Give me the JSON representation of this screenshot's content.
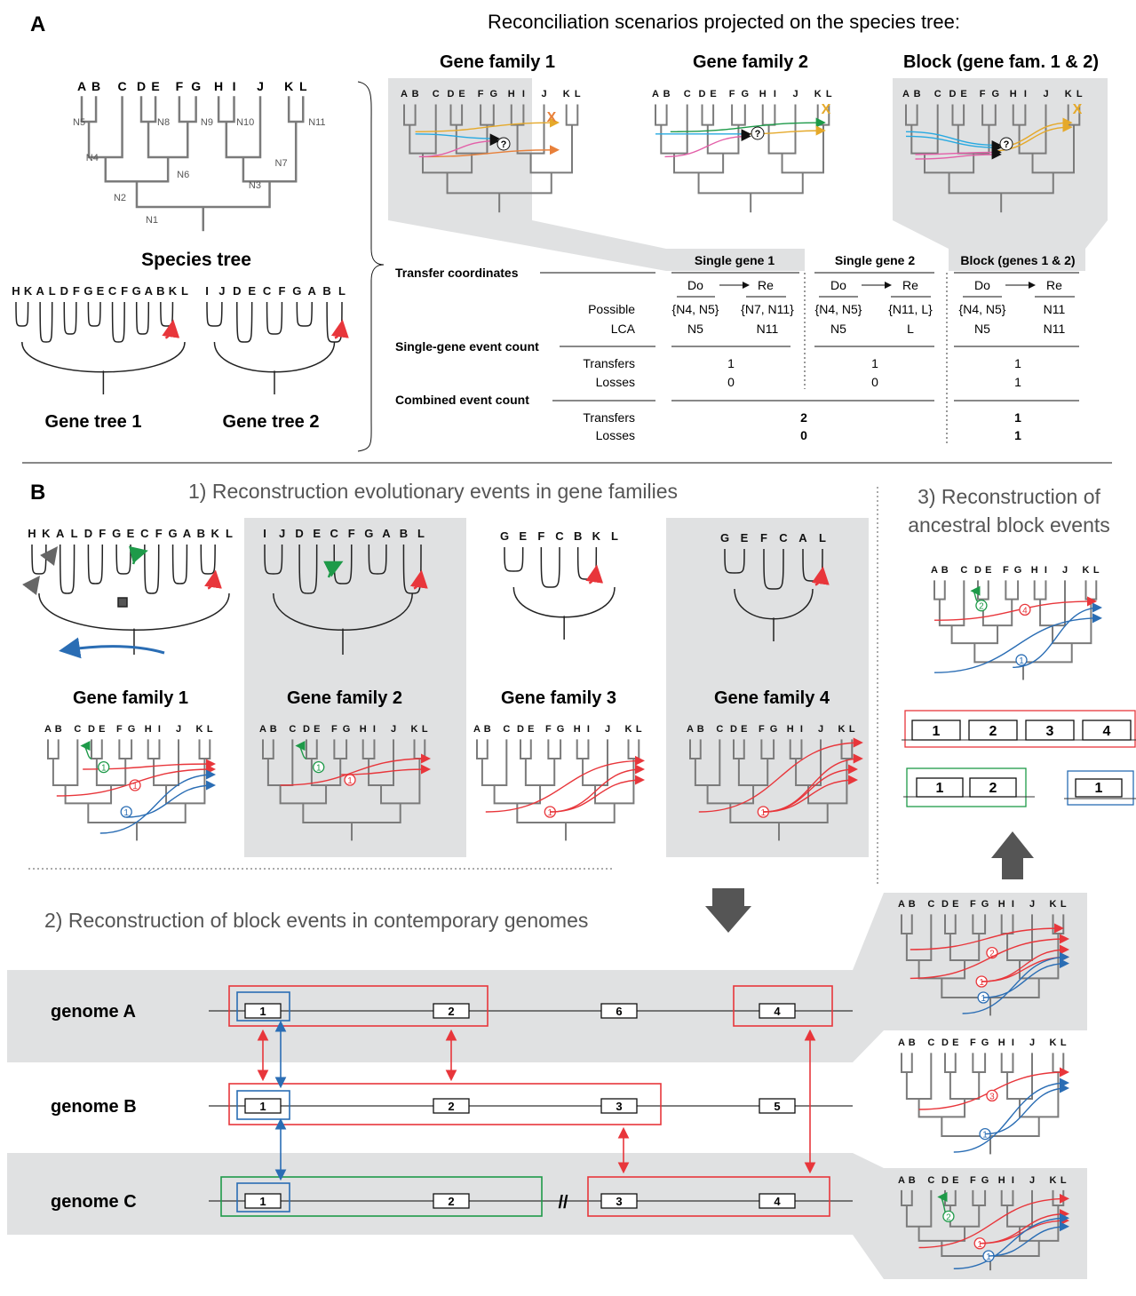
{
  "panel_a": {
    "letter": "A",
    "title": "Reconciliation scenarios projected on the species tree:",
    "species_tree": {
      "caption": "Species tree",
      "leaves": [
        "A",
        "B",
        "C",
        "D",
        "E",
        "F",
        "G",
        "H",
        "I",
        "J",
        "K",
        "L"
      ],
      "nodes": [
        "N1",
        "N2",
        "N3",
        "N4",
        "N5",
        "N6",
        "N7",
        "N8",
        "N9",
        "N10",
        "N11"
      ]
    },
    "gene_tree_1": {
      "caption": "Gene tree 1",
      "leaves": [
        "H",
        "K",
        "A",
        "L",
        "D",
        "F",
        "G",
        "E",
        "C",
        "F",
        "G",
        "A",
        "B",
        "K",
        "L"
      ]
    },
    "gene_tree_2": {
      "caption": "Gene tree 2",
      "leaves": [
        "I",
        "J",
        "D",
        "E",
        "C",
        "F",
        "G",
        "A",
        "B",
        "L"
      ]
    },
    "scenario_titles": [
      "Gene family 1",
      "Gene family 2",
      "Block (gene fam. 1 & 2)"
    ],
    "unknown_mark": "?",
    "loss_mark": "X",
    "table": {
      "col_heads": [
        "Single gene 1",
        "Single gene 2",
        "Block (genes 1 & 2)"
      ],
      "do_label": "Do",
      "re_label": "Re",
      "row_transfer_coords": "Transfer coordinates",
      "row_possible": "Possible",
      "row_lca": "LCA",
      "row_single_count": "Single-gene event count",
      "row_transfers": "Transfers",
      "row_losses": "Losses",
      "row_combined_count": "Combined event count",
      "possible": [
        "{N4, N5}",
        "{N7, N11}",
        "{N4, N5}",
        "{N11, L}",
        "{N4, N5}",
        "N11"
      ],
      "lca": [
        "N5",
        "N11",
        "N5",
        "L",
        "N5",
        "N11"
      ],
      "single_transfers": [
        "1",
        "1",
        "1"
      ],
      "single_losses": [
        "0",
        "0",
        "1"
      ],
      "combined_transfers": [
        "2",
        "1"
      ],
      "combined_losses": [
        "0",
        "1"
      ]
    }
  },
  "panel_b": {
    "letter": "B",
    "step1_title": "1) Reconstruction evolutionary events in gene families",
    "step2_title": "2) Reconstruction of block events in contemporary genomes",
    "step3_title_line1": "3) Reconstruction of",
    "step3_title_line2": "ancestral block events",
    "families": [
      {
        "title": "Gene family 1",
        "leaves": [
          "H",
          "K",
          "A",
          "L",
          "D",
          "F",
          "G",
          "E",
          "C",
          "F",
          "G",
          "A",
          "B",
          "K",
          "L"
        ]
      },
      {
        "title": "Gene family 2",
        "leaves": [
          "I",
          "J",
          "D",
          "E",
          "C",
          "F",
          "G",
          "A",
          "B",
          "L"
        ]
      },
      {
        "title": "Gene family 3",
        "leaves": [
          "G",
          "E",
          "F",
          "C",
          "B",
          "K",
          "L"
        ]
      },
      {
        "title": "Gene family 4",
        "leaves": [
          "G",
          "E",
          "F",
          "C",
          "A",
          "L"
        ]
      }
    ],
    "event_numbers": [
      "1",
      "2",
      "3",
      "4"
    ],
    "genomes": [
      {
        "name": "genome A",
        "genes": [
          "1",
          "2",
          "6",
          "4"
        ]
      },
      {
        "name": "genome B",
        "genes": [
          "1",
          "2",
          "3",
          "5"
        ]
      },
      {
        "name": "genome C",
        "genes": [
          "1",
          "2",
          "3",
          "4"
        ]
      }
    ],
    "break_mark": "//",
    "ancestral_blocks": {
      "red": [
        "1",
        "2",
        "3",
        "4"
      ],
      "green": [
        "1",
        "2"
      ],
      "blue": [
        "1"
      ]
    }
  },
  "colors": {
    "red": "#e8363b",
    "blue": "#2a6db4",
    "green": "#1e9a49",
    "cyan": "#27a9e1",
    "pink": "#e35fa8",
    "orange": "#e8803a",
    "gold": "#e5a92a",
    "grey_tree": "#7b7b7b",
    "panel_bg": "#e0e1e2"
  }
}
